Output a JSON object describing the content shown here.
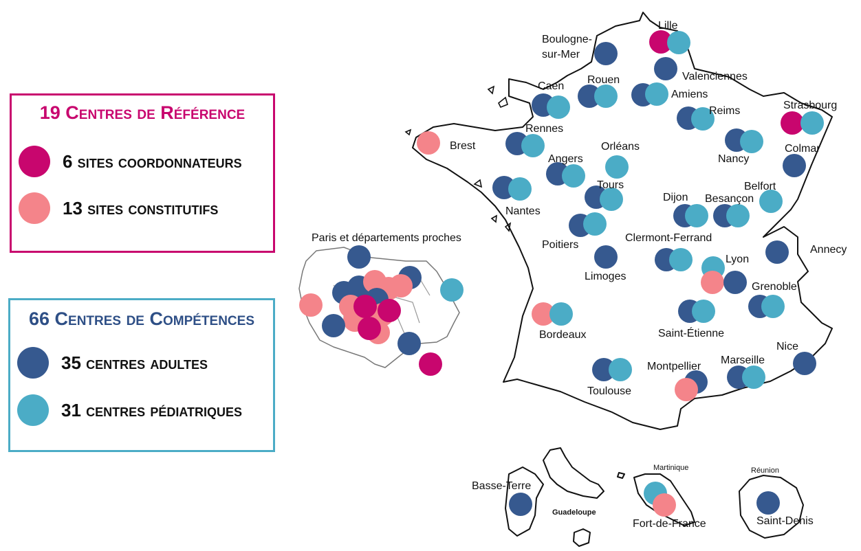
{
  "colors": {
    "coordinator": "#c8066e",
    "constitutive": "#f4848a",
    "adult": "#36598f",
    "pediatric": "#4bacc6"
  },
  "legend_reference": {
    "title": "19 Centres de Référence",
    "coordinators": "6 sites coordonnateurs",
    "constitutive": "13 sites constitutifs"
  },
  "legend_competence": {
    "title": "66 Centres de Compétences",
    "adults": "35 centres adultes",
    "pediatric": "31 centres pédiatriques"
  },
  "map": {
    "paris_region_label": "Paris et départements proches",
    "island_labels": {
      "guadeloupe": "Guadeloupe",
      "martinique": "Martinique",
      "reunion": "Réunion"
    },
    "cities": [
      {
        "name": "Lille",
        "sites": [
          "coordinator",
          "pediatric"
        ]
      },
      {
        "name": "Boulogne-sur-Mer",
        "sites": [
          "adult"
        ]
      },
      {
        "name": "Valenciennes",
        "sites": [
          "adult"
        ]
      },
      {
        "name": "Caen",
        "sites": [
          "adult",
          "pediatric"
        ]
      },
      {
        "name": "Rouen",
        "sites": [
          "adult",
          "pediatric"
        ]
      },
      {
        "name": "Amiens",
        "sites": [
          "adult",
          "pediatric"
        ]
      },
      {
        "name": "Reims",
        "sites": [
          "adult",
          "pediatric"
        ]
      },
      {
        "name": "Strasbourg",
        "sites": [
          "coordinator",
          "pediatric"
        ]
      },
      {
        "name": "Brest",
        "sites": [
          "constitutive"
        ]
      },
      {
        "name": "Rennes",
        "sites": [
          "adult",
          "pediatric"
        ]
      },
      {
        "name": "Orléans",
        "sites": [
          "pediatric"
        ]
      },
      {
        "name": "Nancy",
        "sites": [
          "adult",
          "pediatric"
        ]
      },
      {
        "name": "Colmar",
        "sites": [
          "adult"
        ]
      },
      {
        "name": "Angers",
        "sites": [
          "adult",
          "pediatric"
        ]
      },
      {
        "name": "Nantes",
        "sites": [
          "adult",
          "pediatric"
        ]
      },
      {
        "name": "Tours",
        "sites": [
          "adult",
          "pediatric"
        ]
      },
      {
        "name": "Belfort",
        "sites": [
          "pediatric"
        ]
      },
      {
        "name": "Dijon",
        "sites": [
          "adult",
          "pediatric"
        ]
      },
      {
        "name": "Besançon",
        "sites": [
          "adult",
          "pediatric"
        ]
      },
      {
        "name": "Poitiers",
        "sites": [
          "adult",
          "pediatric"
        ]
      },
      {
        "name": "Clermont-Ferrand",
        "sites": [
          "adult",
          "pediatric"
        ]
      },
      {
        "name": "Limoges",
        "sites": [
          "adult"
        ]
      },
      {
        "name": "Annecy",
        "sites": [
          "adult"
        ]
      },
      {
        "name": "Lyon",
        "sites": [
          "pediatric",
          "constitutive",
          "adult"
        ]
      },
      {
        "name": "Grenoble",
        "sites": [
          "adult",
          "pediatric"
        ]
      },
      {
        "name": "Bordeaux",
        "sites": [
          "constitutive",
          "pediatric"
        ]
      },
      {
        "name": "Saint-Étienne",
        "sites": [
          "adult",
          "pediatric"
        ]
      },
      {
        "name": "Nice",
        "sites": [
          "adult"
        ]
      },
      {
        "name": "Marseille",
        "sites": [
          "adult",
          "pediatric"
        ]
      },
      {
        "name": "Montpellier",
        "sites": [
          "adult",
          "constitutive"
        ]
      },
      {
        "name": "Toulouse",
        "sites": [
          "adult",
          "pediatric"
        ]
      },
      {
        "name": "Basse-Terre",
        "sites": [
          "adult"
        ]
      },
      {
        "name": "Fort-de-France",
        "sites": [
          "pediatric",
          "constitutive"
        ]
      },
      {
        "name": "Saint-Denis",
        "sites": [
          "adult"
        ]
      }
    ]
  }
}
